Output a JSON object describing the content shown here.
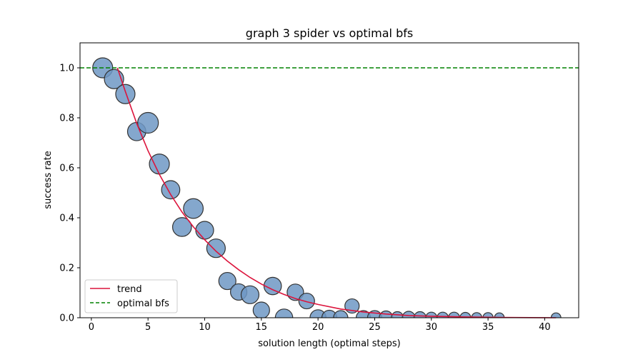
{
  "chart_data": {
    "type": "scatter",
    "title": "graph 3 spider vs optimal bfs",
    "xlabel": "solution length (optimal steps)",
    "ylabel": "success rate",
    "xlim": [
      -1,
      43
    ],
    "ylim": [
      0,
      1.1
    ],
    "xticks": [
      0,
      5,
      10,
      15,
      20,
      25,
      30,
      35,
      40
    ],
    "yticks": [
      0.0,
      0.2,
      0.4,
      0.6,
      0.8,
      1.0
    ],
    "grid": false,
    "legend_position": "lower-left",
    "colors": {
      "points": "#6f98c4",
      "point_edge": "#333333",
      "trend": "#dc143c",
      "optimal": "#008000"
    },
    "series": [
      {
        "name": "",
        "kind": "scatter",
        "points": [
          {
            "x": 1,
            "y": 1.0,
            "size": 1.0
          },
          {
            "x": 2,
            "y": 0.955,
            "size": 0.95
          },
          {
            "x": 3,
            "y": 0.895,
            "size": 0.95
          },
          {
            "x": 4,
            "y": 0.745,
            "size": 0.88
          },
          {
            "x": 5,
            "y": 0.78,
            "size": 1.05
          },
          {
            "x": 6,
            "y": 0.615,
            "size": 1.0
          },
          {
            "x": 7,
            "y": 0.512,
            "size": 0.88
          },
          {
            "x": 8,
            "y": 0.363,
            "size": 0.92
          },
          {
            "x": 9,
            "y": 0.437,
            "size": 0.98
          },
          {
            "x": 10,
            "y": 0.35,
            "size": 0.85
          },
          {
            "x": 11,
            "y": 0.278,
            "size": 0.9
          },
          {
            "x": 12,
            "y": 0.147,
            "size": 0.8
          },
          {
            "x": 13,
            "y": 0.103,
            "size": 0.75
          },
          {
            "x": 14,
            "y": 0.092,
            "size": 0.85
          },
          {
            "x": 15,
            "y": 0.03,
            "size": 0.75
          },
          {
            "x": 16,
            "y": 0.127,
            "size": 0.82
          },
          {
            "x": 17,
            "y": 0.0,
            "size": 0.82
          },
          {
            "x": 18,
            "y": 0.102,
            "size": 0.75
          },
          {
            "x": 19,
            "y": 0.067,
            "size": 0.7
          },
          {
            "x": 20,
            "y": 0.0,
            "size": 0.72
          },
          {
            "x": 21,
            "y": 0.0,
            "size": 0.65
          },
          {
            "x": 22,
            "y": 0.0,
            "size": 0.6
          },
          {
            "x": 23,
            "y": 0.047,
            "size": 0.6
          },
          {
            "x": 24,
            "y": 0.0,
            "size": 0.6
          },
          {
            "x": 25,
            "y": 0.0,
            "size": 0.6
          },
          {
            "x": 26,
            "y": 0.0,
            "size": 0.55
          },
          {
            "x": 27,
            "y": 0.0,
            "size": 0.45
          },
          {
            "x": 28,
            "y": 0.0,
            "size": 0.5
          },
          {
            "x": 29,
            "y": 0.0,
            "size": 0.45
          },
          {
            "x": 30,
            "y": 0.0,
            "size": 0.38
          },
          {
            "x": 31,
            "y": 0.0,
            "size": 0.38
          },
          {
            "x": 32,
            "y": 0.0,
            "size": 0.38
          },
          {
            "x": 33,
            "y": 0.0,
            "size": 0.35
          },
          {
            "x": 34,
            "y": 0.0,
            "size": 0.32
          },
          {
            "x": 35,
            "y": 0.0,
            "size": 0.32
          },
          {
            "x": 36,
            "y": 0.0,
            "size": 0.28
          },
          {
            "x": 41,
            "y": 0.0,
            "size": 0.28
          }
        ]
      },
      {
        "name": "trend",
        "kind": "line",
        "x": [
          2.3,
          3,
          4,
          5,
          6,
          7,
          8,
          9,
          10,
          11,
          12,
          13,
          14,
          15,
          16,
          17,
          18,
          19,
          20,
          22,
          24,
          26,
          28,
          30,
          33,
          36,
          41
        ],
        "y": [
          1.0,
          0.905,
          0.778,
          0.668,
          0.574,
          0.493,
          0.423,
          0.364,
          0.312,
          0.266,
          0.227,
          0.192,
          0.161,
          0.135,
          0.112,
          0.093,
          0.077,
          0.064,
          0.053,
          0.035,
          0.023,
          0.015,
          0.009,
          0.006,
          0.003,
          0.001,
          0.0
        ]
      },
      {
        "name": "optimal bfs",
        "kind": "hline",
        "y": 1.0
      }
    ]
  }
}
